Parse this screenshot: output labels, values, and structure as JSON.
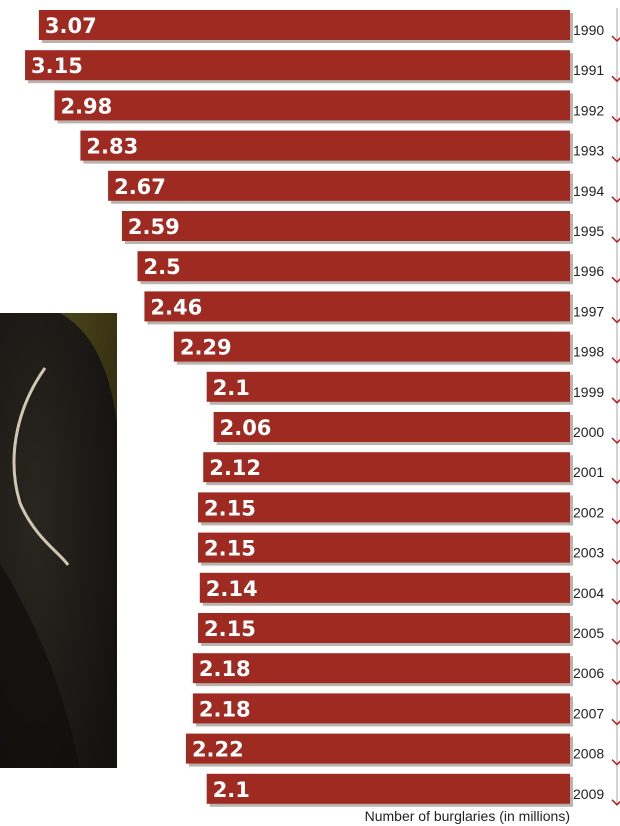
{
  "chart_data": {
    "type": "bar",
    "orientation": "horizontal",
    "categories": [
      "1990",
      "1991",
      "1992",
      "1993",
      "1994",
      "1995",
      "1996",
      "1997",
      "1998",
      "1999",
      "2000",
      "2001",
      "2002",
      "2003",
      "2004",
      "2005",
      "2006",
      "2007",
      "2008",
      "2009"
    ],
    "values": [
      3.07,
      3.15,
      2.98,
      2.83,
      2.67,
      2.59,
      2.5,
      2.46,
      2.29,
      2.1,
      2.06,
      2.12,
      2.15,
      2.15,
      2.14,
      2.15,
      2.18,
      2.18,
      2.22,
      2.1
    ],
    "value_labels": [
      "3.07",
      "3.15",
      "2.98",
      "2.83",
      "2.67",
      "2.59",
      "2.5",
      "2.46",
      "2.29",
      "2.1",
      "2.06",
      "2.12",
      "2.15",
      "2.15",
      "2.14",
      "2.15",
      "2.18",
      "2.18",
      "2.22",
      "2.1"
    ],
    "xlabel": "Number of burglaries (in millions)",
    "bar_direction": "right-to-left",
    "grid": false,
    "colors": {
      "bar": "#9e2a21",
      "bar_shadow": "#b9b3ad",
      "label": "#ffffff",
      "timeline": "#aaaaaa",
      "arrow": "#b02020"
    }
  }
}
